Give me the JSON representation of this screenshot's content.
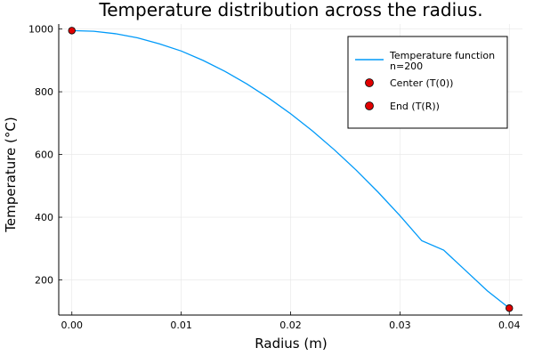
{
  "chart_data": {
    "type": "line",
    "title": "Temperature distribution across the radius.",
    "xlabel": "Radius (m)",
    "ylabel": "Temperature (°C)",
    "xlim": [
      -0.0012,
      0.0412
    ],
    "ylim": [
      88,
      1016
    ],
    "xticks": [
      0.0,
      0.01,
      0.02,
      0.03,
      0.04
    ],
    "xtick_labels": [
      "0.00",
      "0.01",
      "0.02",
      "0.03",
      "0.04"
    ],
    "yticks": [
      200,
      400,
      600,
      800,
      1000
    ],
    "ytick_labels": [
      "200",
      "400",
      "600",
      "800",
      "1000"
    ],
    "grid": true,
    "legend_position": "top-right",
    "series": [
      {
        "name": "Temperature function\nn=200",
        "kind": "line",
        "color": "#009af9",
        "x": [
          0.0,
          0.002,
          0.004,
          0.006,
          0.008,
          0.01,
          0.012,
          0.014,
          0.016,
          0.018,
          0.02,
          0.022,
          0.024,
          0.026,
          0.028,
          0.03,
          0.032,
          0.034,
          0.036,
          0.038,
          0.04
        ],
        "y": [
          995,
          993,
          985,
          972,
          953,
          930,
          900,
          865,
          825,
          780,
          730,
          675,
          615,
          550,
          480,
          405,
          325,
          295,
          230,
          165,
          110
        ]
      },
      {
        "name": "Center (T(0))",
        "kind": "scatter",
        "color": "#e00000",
        "x": [
          0.0
        ],
        "y": [
          995
        ]
      },
      {
        "name": "End (T(R))",
        "kind": "scatter",
        "color": "#e00000",
        "x": [
          0.04
        ],
        "y": [
          110
        ]
      }
    ]
  }
}
